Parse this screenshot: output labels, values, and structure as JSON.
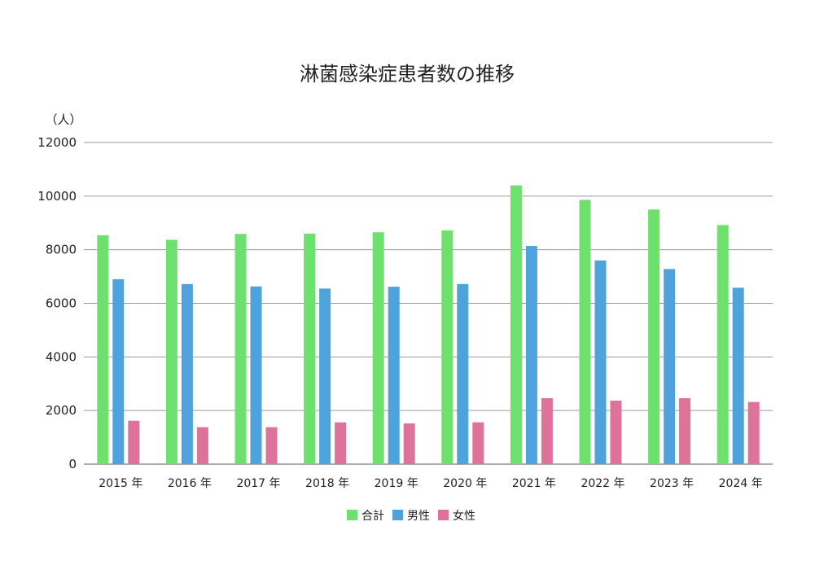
{
  "chart_data": {
    "type": "bar",
    "title": "淋菌感染症患者数の推移",
    "ylabel": "（人）",
    "xlabel": "",
    "ylim": [
      0,
      12000
    ],
    "yticks": [
      0,
      2000,
      4000,
      6000,
      8000,
      10000,
      12000
    ],
    "grid": true,
    "legend_position": "bottom",
    "categories": [
      "2015 年",
      "2016 年",
      "2017 年",
      "2018 年",
      "2019 年",
      "2020 年",
      "2021 年",
      "2022 年",
      "2023 年",
      "2024 年"
    ],
    "series": [
      {
        "name": "合計",
        "color": "#6ee06e",
        "values": [
          8540,
          8370,
          8590,
          8600,
          8650,
          8720,
          10400,
          9860,
          9500,
          8920
        ]
      },
      {
        "name": "男性",
        "color": "#4ea3dc",
        "values": [
          6900,
          6720,
          6630,
          6550,
          6620,
          6720,
          8140,
          7600,
          7280,
          6580
        ]
      },
      {
        "name": "女性",
        "color": "#dd7399",
        "values": [
          1620,
          1380,
          1380,
          1560,
          1520,
          1560,
          2460,
          2370,
          2460,
          2320
        ]
      }
    ]
  }
}
